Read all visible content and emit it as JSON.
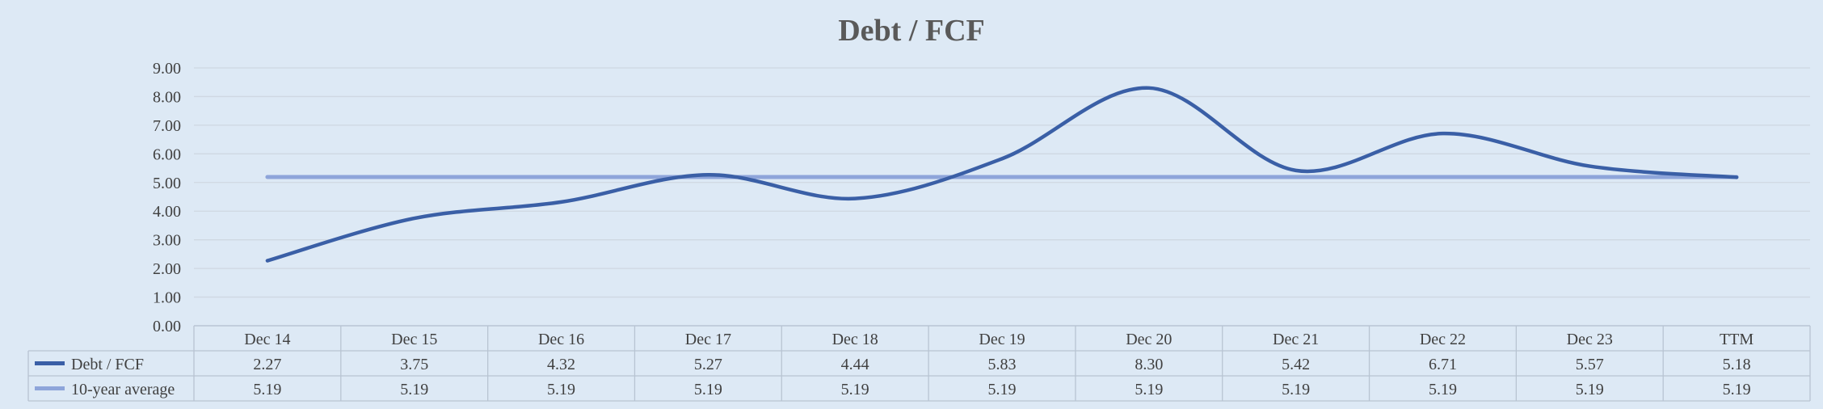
{
  "chart_data": {
    "type": "line",
    "title": "Debt / FCF",
    "categories": [
      "Dec 14",
      "Dec 15",
      "Dec 16",
      "Dec 17",
      "Dec 18",
      "Dec 19",
      "Dec 20",
      "Dec 21",
      "Dec 22",
      "Dec 23",
      "TTM"
    ],
    "series": [
      {
        "name": "Debt / FCF",
        "color": "#3a5fa6",
        "values": [
          2.27,
          3.75,
          4.32,
          5.27,
          4.44,
          5.83,
          8.3,
          5.42,
          6.71,
          5.57,
          5.18
        ],
        "labels": [
          "2.27",
          "3.75",
          "4.32",
          "5.27",
          "4.44",
          "5.83",
          "8.30",
          "5.42",
          "6.71",
          "5.57",
          "5.18"
        ]
      },
      {
        "name": "10-year average",
        "color": "#8ea5da",
        "values": [
          5.19,
          5.19,
          5.19,
          5.19,
          5.19,
          5.19,
          5.19,
          5.19,
          5.19,
          5.19,
          5.19
        ],
        "labels": [
          "5.19",
          "5.19",
          "5.19",
          "5.19",
          "5.19",
          "5.19",
          "5.19",
          "5.19",
          "5.19",
          "5.19",
          "5.19"
        ]
      }
    ],
    "ylim": [
      0,
      9
    ],
    "yticks": [
      "0.00",
      "1.00",
      "2.00",
      "3.00",
      "4.00",
      "5.00",
      "6.00",
      "7.00",
      "8.00",
      "9.00"
    ],
    "grid": true,
    "legend": "data-table"
  }
}
